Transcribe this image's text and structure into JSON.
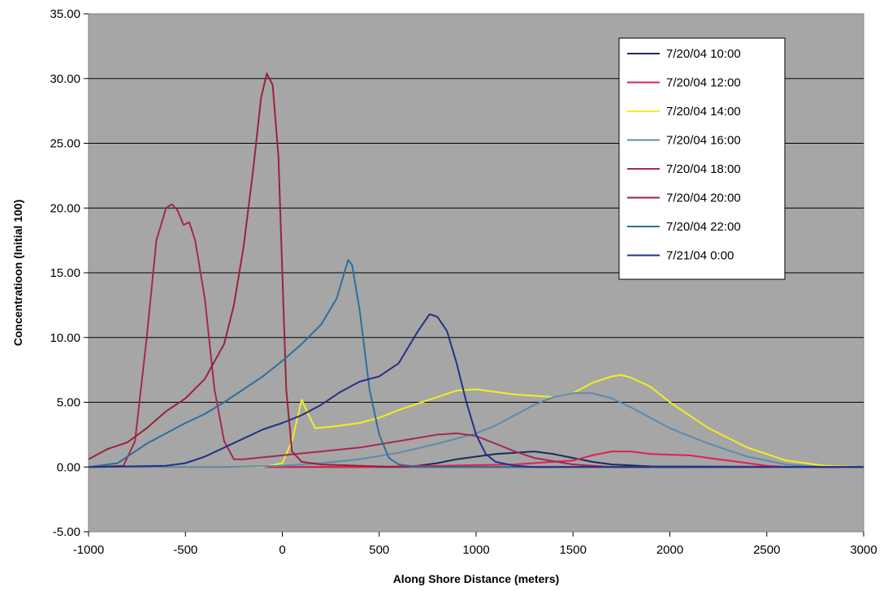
{
  "chart_data": {
    "type": "line",
    "xlabel": "Along Shore Distance (meters)",
    "ylabel": "Concentratioon (Initial 100)",
    "xlim": [
      -1000,
      3000
    ],
    "ylim": [
      -5,
      35
    ],
    "xticks": [
      -1000,
      -500,
      0,
      500,
      1000,
      1500,
      2000,
      2500,
      3000
    ],
    "xtick_labels": [
      "-1000",
      "-500",
      "0",
      "500",
      "1000",
      "1500",
      "2000",
      "2500",
      "3000"
    ],
    "yticks": [
      -5,
      0,
      5,
      10,
      15,
      20,
      25,
      30,
      35
    ],
    "ytick_labels": [
      "-5.00",
      "0.00",
      "5.00",
      "10.00",
      "15.00",
      "20.00",
      "25.00",
      "30.00",
      "35.00"
    ],
    "grid": true,
    "legend_position": "top-right",
    "plot_background": "#a6a6a6",
    "series": [
      {
        "name": "7/20/04 10:00",
        "color": "#1a2a5c",
        "points": [
          [
            -1000,
            0
          ],
          [
            600,
            0
          ],
          [
            700,
            0.1
          ],
          [
            800,
            0.3
          ],
          [
            900,
            0.6
          ],
          [
            1000,
            0.8
          ],
          [
            1100,
            1.0
          ],
          [
            1200,
            1.1
          ],
          [
            1300,
            1.2
          ],
          [
            1400,
            1.0
          ],
          [
            1500,
            0.7
          ],
          [
            1600,
            0.4
          ],
          [
            1700,
            0.2
          ],
          [
            1900,
            0.05
          ],
          [
            3000,
            0
          ]
        ]
      },
      {
        "name": "7/20/04 12:00",
        "color": "#e02050",
        "points": [
          [
            -1000,
            0
          ],
          [
            400,
            0
          ],
          [
            800,
            0.1
          ],
          [
            1200,
            0.2
          ],
          [
            1500,
            0.5
          ],
          [
            1600,
            0.9
          ],
          [
            1700,
            1.2
          ],
          [
            1800,
            1.2
          ],
          [
            1900,
            1.0
          ],
          [
            2100,
            0.9
          ],
          [
            2200,
            0.7
          ],
          [
            2300,
            0.5
          ],
          [
            2400,
            0.3
          ],
          [
            2500,
            0.1
          ],
          [
            2600,
            0
          ],
          [
            3000,
            0
          ]
        ]
      },
      {
        "name": "7/20/04 14:00",
        "color": "#f0f020",
        "points": [
          [
            -1000,
            0
          ],
          [
            -100,
            0
          ],
          [
            0,
            0.3
          ],
          [
            50,
            2.0
          ],
          [
            100,
            5.2
          ],
          [
            130,
            4.2
          ],
          [
            170,
            3.0
          ],
          [
            250,
            3.1
          ],
          [
            400,
            3.4
          ],
          [
            500,
            3.8
          ],
          [
            600,
            4.4
          ],
          [
            700,
            4.9
          ],
          [
            800,
            5.4
          ],
          [
            900,
            5.9
          ],
          [
            1000,
            6.0
          ],
          [
            1100,
            5.8
          ],
          [
            1200,
            5.6
          ],
          [
            1400,
            5.4
          ],
          [
            1500,
            5.7
          ],
          [
            1600,
            6.5
          ],
          [
            1700,
            7.0
          ],
          [
            1750,
            7.1
          ],
          [
            1800,
            6.9
          ],
          [
            1900,
            6.2
          ],
          [
            2000,
            5.0
          ],
          [
            2200,
            3.0
          ],
          [
            2400,
            1.5
          ],
          [
            2600,
            0.5
          ],
          [
            2800,
            0.1
          ],
          [
            3000,
            0
          ]
        ]
      },
      {
        "name": "7/20/04 16:00",
        "color": "#5b8ab0",
        "points": [
          [
            -1000,
            0
          ],
          [
            -300,
            0
          ],
          [
            0,
            0.1
          ],
          [
            200,
            0.3
          ],
          [
            400,
            0.6
          ],
          [
            600,
            1.1
          ],
          [
            800,
            1.8
          ],
          [
            1000,
            2.6
          ],
          [
            1100,
            3.2
          ],
          [
            1200,
            4.0
          ],
          [
            1300,
            4.8
          ],
          [
            1400,
            5.4
          ],
          [
            1500,
            5.7
          ],
          [
            1600,
            5.7
          ],
          [
            1700,
            5.3
          ],
          [
            1800,
            4.6
          ],
          [
            1900,
            3.8
          ],
          [
            2000,
            3.0
          ],
          [
            2200,
            1.8
          ],
          [
            2400,
            0.8
          ],
          [
            2600,
            0.2
          ],
          [
            2800,
            0
          ],
          [
            3000,
            0
          ]
        ]
      },
      {
        "name": "7/20/04 18:00",
        "color": "#a42850",
        "points": [
          [
            -1000,
            0
          ],
          [
            -820,
            0.1
          ],
          [
            -760,
            2.0
          ],
          [
            -700,
            10.0
          ],
          [
            -650,
            17.5
          ],
          [
            -600,
            20.0
          ],
          [
            -570,
            20.3
          ],
          [
            -540,
            19.8
          ],
          [
            -510,
            18.7
          ],
          [
            -480,
            18.9
          ],
          [
            -450,
            17.5
          ],
          [
            -400,
            13.0
          ],
          [
            -350,
            6.0
          ],
          [
            -300,
            2.0
          ],
          [
            -250,
            0.6
          ],
          [
            -200,
            0.6
          ],
          [
            0,
            0.9
          ],
          [
            200,
            1.2
          ],
          [
            400,
            1.5
          ],
          [
            600,
            2.0
          ],
          [
            800,
            2.5
          ],
          [
            900,
            2.6
          ],
          [
            1000,
            2.4
          ],
          [
            1100,
            1.8
          ],
          [
            1200,
            1.2
          ],
          [
            1300,
            0.7
          ],
          [
            1500,
            0.2
          ],
          [
            1700,
            0
          ],
          [
            3000,
            0
          ]
        ]
      },
      {
        "name": "7/20/04 20:00",
        "color": "#9a2238",
        "points": [
          [
            -1000,
            0.6
          ],
          [
            -950,
            1.0
          ],
          [
            -900,
            1.4
          ],
          [
            -800,
            1.9
          ],
          [
            -700,
            3.0
          ],
          [
            -600,
            4.3
          ],
          [
            -500,
            5.3
          ],
          [
            -400,
            6.8
          ],
          [
            -300,
            9.5
          ],
          [
            -250,
            12.5
          ],
          [
            -200,
            17.0
          ],
          [
            -150,
            23.0
          ],
          [
            -110,
            28.5
          ],
          [
            -80,
            30.4
          ],
          [
            -50,
            29.5
          ],
          [
            -20,
            24.0
          ],
          [
            0,
            15.0
          ],
          [
            20,
            6.0
          ],
          [
            50,
            1.2
          ],
          [
            100,
            0.4
          ],
          [
            200,
            0.2
          ],
          [
            400,
            0.1
          ],
          [
            600,
            0
          ],
          [
            3000,
            0
          ]
        ]
      },
      {
        "name": "7/20/04 22:00",
        "color": "#2f6e9a",
        "points": [
          [
            -1000,
            0
          ],
          [
            -850,
            0.3
          ],
          [
            -780,
            1.0
          ],
          [
            -700,
            1.8
          ],
          [
            -600,
            2.6
          ],
          [
            -500,
            3.4
          ],
          [
            -400,
            4.1
          ],
          [
            -300,
            5.0
          ],
          [
            -200,
            6.0
          ],
          [
            -100,
            7.0
          ],
          [
            0,
            8.2
          ],
          [
            100,
            9.5
          ],
          [
            200,
            11.0
          ],
          [
            280,
            13.0
          ],
          [
            320,
            15.0
          ],
          [
            340,
            16.0
          ],
          [
            360,
            15.6
          ],
          [
            400,
            12.0
          ],
          [
            450,
            6.0
          ],
          [
            500,
            2.5
          ],
          [
            550,
            0.7
          ],
          [
            600,
            0.2
          ],
          [
            700,
            0
          ],
          [
            3000,
            0
          ]
        ]
      },
      {
        "name": "7/21/04 0:00",
        "color": "#22308a",
        "points": [
          [
            -1000,
            0
          ],
          [
            -600,
            0.1
          ],
          [
            -500,
            0.3
          ],
          [
            -400,
            0.8
          ],
          [
            -300,
            1.5
          ],
          [
            -200,
            2.2
          ],
          [
            -100,
            2.9
          ],
          [
            0,
            3.4
          ],
          [
            100,
            4.0
          ],
          [
            200,
            4.8
          ],
          [
            300,
            5.8
          ],
          [
            400,
            6.6
          ],
          [
            500,
            7.0
          ],
          [
            600,
            8.0
          ],
          [
            700,
            10.5
          ],
          [
            760,
            11.8
          ],
          [
            800,
            11.6
          ],
          [
            850,
            10.5
          ],
          [
            900,
            8.0
          ],
          [
            950,
            5.0
          ],
          [
            1000,
            2.5
          ],
          [
            1050,
            1.0
          ],
          [
            1100,
            0.4
          ],
          [
            1200,
            0.1
          ],
          [
            1300,
            0
          ],
          [
            3000,
            0
          ]
        ]
      }
    ]
  }
}
